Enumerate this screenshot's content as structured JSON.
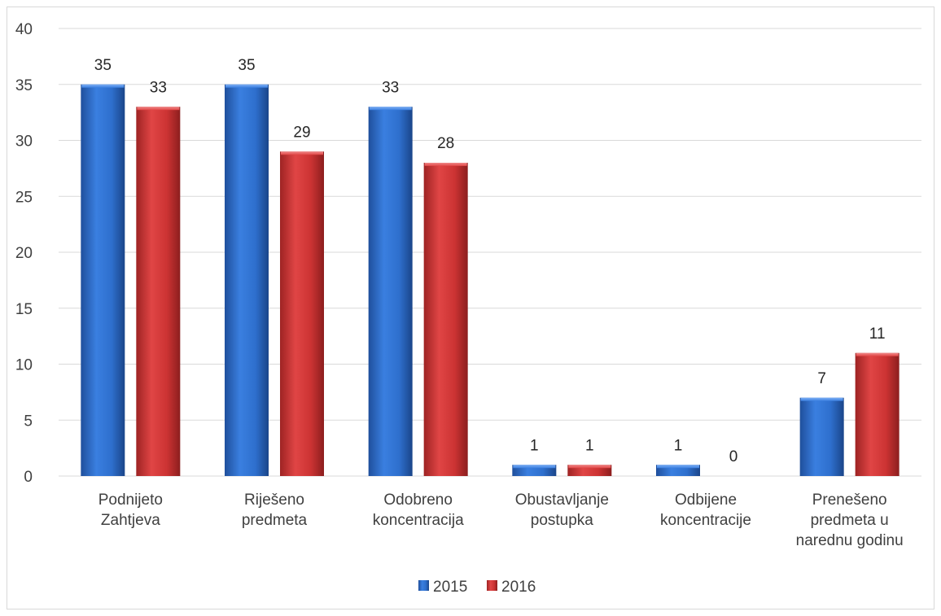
{
  "chart_data": {
    "type": "bar",
    "categories": [
      [
        "Podnijeto",
        "Zahtjeva"
      ],
      [
        "Riješeno",
        "predmeta"
      ],
      [
        "Odobreno",
        "koncentracija"
      ],
      [
        "Obustavljanje",
        "postupka"
      ],
      [
        "Odbijene",
        "koncentracije"
      ],
      [
        "Prenešeno",
        "predmeta u",
        "narednu godinu"
      ]
    ],
    "series": [
      {
        "name": "2015",
        "values": [
          35,
          35,
          33,
          1,
          1,
          7
        ],
        "color": "#2e6fcd"
      },
      {
        "name": "2016",
        "values": [
          33,
          29,
          28,
          1,
          0,
          11
        ],
        "color": "#cc3333"
      }
    ],
    "ylim": [
      0,
      40
    ],
    "yticks": [
      "0",
      "5",
      "10",
      "15",
      "20",
      "25",
      "30",
      "35",
      "40"
    ],
    "grid": true,
    "legend": "bottom"
  }
}
